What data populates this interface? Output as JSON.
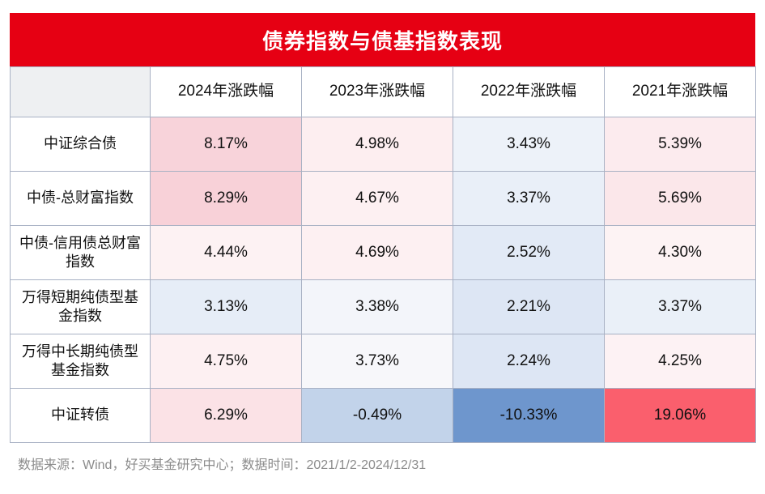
{
  "title": "债券指数与债基指数表现",
  "accent_color": "#e60013",
  "border_color": "#a8b1c4",
  "table": {
    "columns": [
      "",
      "2024年涨跌幅",
      "2023年涨跌幅",
      "2022年涨跌幅",
      "2021年涨跌幅"
    ],
    "rows": [
      {
        "label": "中证综合债",
        "values": [
          "8.17%",
          "4.98%",
          "3.43%",
          "5.39%"
        ],
        "colors": [
          "#f8d3da",
          "#fdeef0",
          "#edf2f9",
          "#fcebee"
        ]
      },
      {
        "label": "中债-总财富指数",
        "values": [
          "8.29%",
          "4.67%",
          "3.37%",
          "5.69%"
        ],
        "colors": [
          "#f8d1d8",
          "#fdf0f2",
          "#e9eff8",
          "#fbe7ea"
        ]
      },
      {
        "label": "中债-信用债总财富指数",
        "values": [
          "4.44%",
          "4.69%",
          "2.52%",
          "4.30%"
        ],
        "colors": [
          "#fdf2f3",
          "#fdf0f2",
          "#e2eaf6",
          "#fdf3f4"
        ]
      },
      {
        "label": "万得短期纯债型基金指数",
        "values": [
          "3.13%",
          "3.38%",
          "2.21%",
          "3.37%"
        ],
        "colors": [
          "#e6edf7",
          "#f3f5fa",
          "#dde6f4",
          "#eaf0f8"
        ]
      },
      {
        "label": "万得中长期纯债型基金指数",
        "values": [
          "4.75%",
          "3.73%",
          "2.24%",
          "4.25%"
        ],
        "colors": [
          "#fdf0f2",
          "#f7f7fa",
          "#dde6f4",
          "#fdf2f4"
        ]
      },
      {
        "label": "中证转债",
        "values": [
          "6.29%",
          "-0.49%",
          "-10.33%",
          "19.06%"
        ],
        "colors": [
          "#fbe2e6",
          "#c2d3ea",
          "#6e96cd",
          "#fa5f6d"
        ]
      }
    ]
  },
  "footer": "数据来源：Wind，好买基金研究中心；数据时间：2021/1/2-2024/12/31",
  "chart_data": {
    "type": "heatmap",
    "title": "债券指数与债基指数表现",
    "columns": [
      "2024年涨跌幅",
      "2023年涨跌幅",
      "2022年涨跌幅",
      "2021年涨跌幅"
    ],
    "rows": [
      "中证综合债",
      "中债-总财富指数",
      "中债-信用债总财富指数",
      "万得短期纯债型基金指数",
      "万得中长期纯债型基金指数",
      "中证转债"
    ],
    "values_pct": [
      [
        8.17,
        4.98,
        3.43,
        5.39
      ],
      [
        8.29,
        4.67,
        3.37,
        5.69
      ],
      [
        4.44,
        4.69,
        2.52,
        4.3
      ],
      [
        3.13,
        3.38,
        2.21,
        3.37
      ],
      [
        4.75,
        3.73,
        2.24,
        4.25
      ],
      [
        6.29,
        -0.49,
        -10.33,
        19.06
      ]
    ],
    "color_scale": {
      "positive_high": "#fa5f6d",
      "neutral": "#ffffff",
      "negative_low": "#6e96cd"
    },
    "legend": "none",
    "grid": true,
    "source_note": "数据来源：Wind，好买基金研究中心；数据时间：2021/1/2-2024/12/31"
  }
}
